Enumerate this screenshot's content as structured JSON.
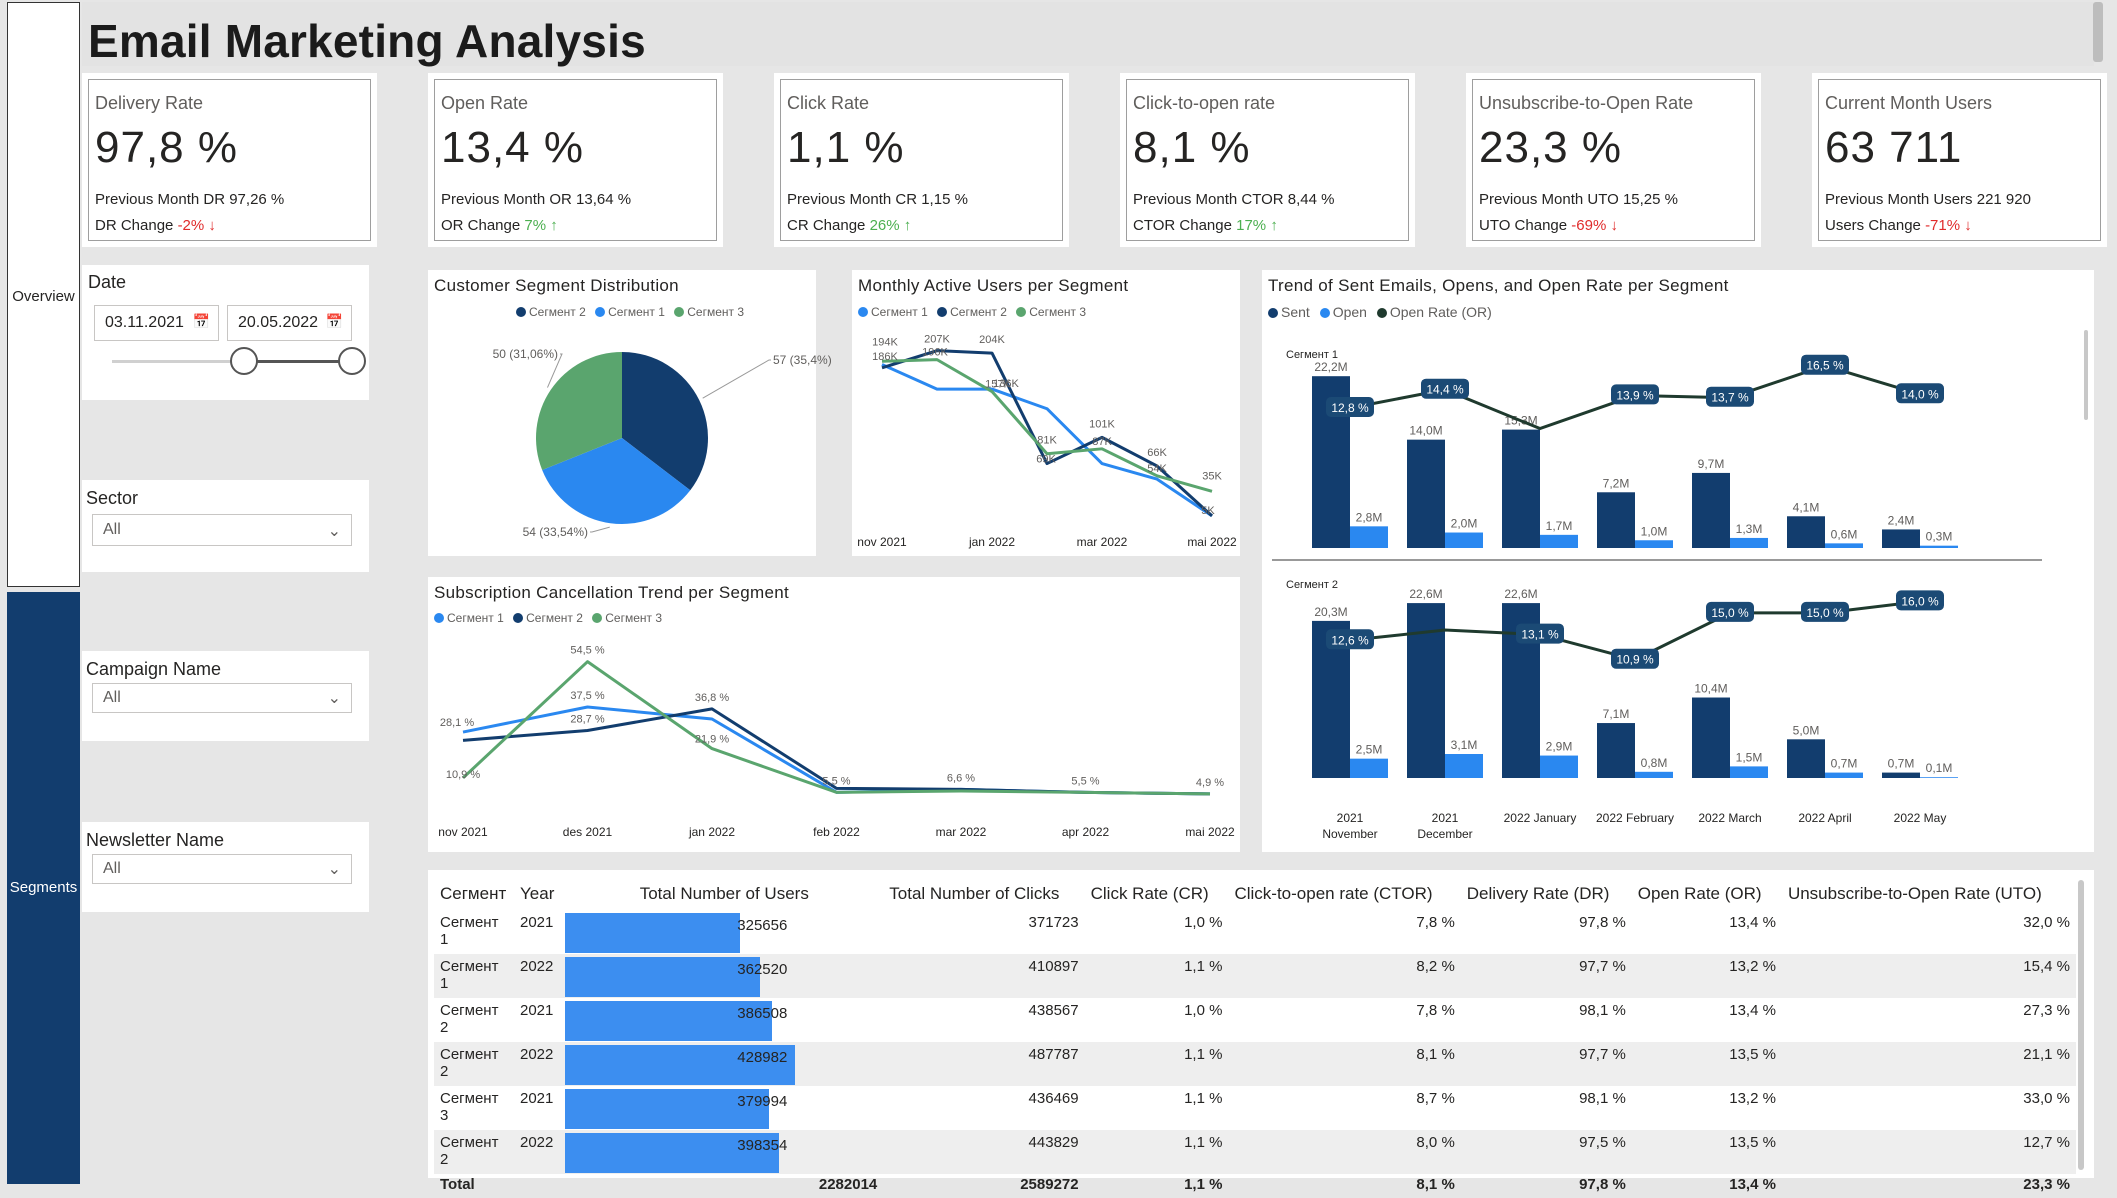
{
  "page_title": "Email Marketing Analysis",
  "nav": {
    "overview": "Overview",
    "segments": "Segments"
  },
  "kpis": [
    {
      "label": "Delivery Rate",
      "value": "97,8 %",
      "prev": "Previous Month DR 97,26 %",
      "change_label": "DR Change",
      "change": "-2%",
      "direction": "down"
    },
    {
      "label": "Open Rate",
      "value": "13,4 %",
      "prev": "Previous Month OR 13,64 %",
      "change_label": "OR Change",
      "change": "7%",
      "direction": "up"
    },
    {
      "label": "Click Rate",
      "value": "1,1 %",
      "prev": "Previous Month CR 1,15 %",
      "change_label": "CR Change",
      "change": "26%",
      "direction": "up"
    },
    {
      "label": "Click-to-open rate",
      "value": "8,1 %",
      "prev": "Previous Month CTOR 8,44 %",
      "change_label": "CTOR Change",
      "change": "17%",
      "direction": "up"
    },
    {
      "label": "Unsubscribe-to-Open Rate",
      "value": "23,3 %",
      "prev": "Previous Month UTO 15,25 %",
      "change_label": "UTO Change",
      "change": "-69%",
      "direction": "down"
    },
    {
      "label": "Current Month Users",
      "value": "63 711",
      "prev": "Previous Month Users 221 920",
      "change_label": "Users Change",
      "change": "-71%",
      "direction": "down"
    }
  ],
  "slicers": {
    "date": {
      "title": "Date",
      "start": "03.11.2021",
      "end": "20.05.2022",
      "range_start": 0.55,
      "range_end": 1.0
    },
    "sector": {
      "title": "Sector",
      "value": "All"
    },
    "campaign": {
      "title": "Campaign Name",
      "value": "All"
    },
    "newsletter": {
      "title": "Newsletter Name",
      "value": "All"
    }
  },
  "colors": {
    "seg1": "#2a88f0",
    "seg2": "#123d6e",
    "seg3": "#5aa56e",
    "nav": "#123d6e",
    "up": "#4caf50",
    "down": "#e02b2b"
  },
  "pie": {
    "title": "Customer Segment Distribution",
    "legend": [
      "Сегмент 2",
      "Сегмент 1",
      "Сегмент 3"
    ],
    "labels": [
      "57 (35,4%)",
      "54 (33,54%)",
      "50 (31,06%)"
    ],
    "chart_data": {
      "type": "pie",
      "categories": [
        "Сегмент 2",
        "Сегмент 1",
        "Сегмент 3"
      ],
      "values": [
        57,
        54,
        50
      ],
      "percent": [
        35.4,
        33.54,
        31.06
      ]
    }
  },
  "mau": {
    "title": "Monthly Active Users per Segment",
    "legend": [
      "Сегмент 1",
      "Сегмент 2",
      "Сегмент 3"
    ],
    "x_labels": [
      "nov 2021",
      "jan 2022",
      "mar 2022",
      "mai 2022"
    ],
    "point_labels": [
      "194K",
      "186K",
      "207K",
      "196K",
      "204K",
      "157K",
      "136K",
      "81K",
      "69K",
      "101K",
      "87K",
      "66K",
      "54K",
      "35K",
      "5K"
    ],
    "chart_data": {
      "type": "line",
      "x": [
        "nov 2021",
        "des 2021",
        "jan 2022",
        "feb 2022",
        "mar 2022",
        "apr 2022",
        "mai 2022"
      ],
      "series": [
        {
          "name": "Сегмент 1",
          "values": [
            190,
            160,
            160,
            136,
            69,
            50,
            5
          ]
        },
        {
          "name": "Сегмент 2",
          "values": [
            186,
            207,
            204,
            69,
            101,
            66,
            5
          ]
        },
        {
          "name": "Сегмент 3",
          "values": [
            194,
            196,
            157,
            81,
            87,
            54,
            35
          ]
        }
      ]
    }
  },
  "trend": {
    "title": "Trend of Sent Emails, Opens, and Open Rate per Segment",
    "legend": [
      "Sent",
      "Open",
      "Open Rate (OR)"
    ],
    "x_labels": [
      "2021 November",
      "2021 December",
      "2022 January",
      "2022 February",
      "2022 March",
      "2022 April",
      "2022 May"
    ],
    "chart_data": [
      {
        "type": "bar",
        "panel": "Сегмент 1",
        "categories": [
          "2021 November",
          "2021 December",
          "2022 January",
          "2022 February",
          "2022 March",
          "2022 April",
          "2022 May"
        ],
        "sent": [
          22.2,
          14.0,
          15.3,
          7.2,
          9.7,
          4.1,
          2.4
        ],
        "open": [
          2.8,
          2.0,
          1.7,
          1.0,
          1.3,
          0.6,
          0.3
        ],
        "or": [
          12.8,
          14.4,
          11.0,
          13.9,
          13.7,
          16.5,
          14.0
        ],
        "sent_labels": [
          "22,2M",
          "14,0M",
          "15,3M",
          "7,2M",
          "9,7M",
          "4,1M",
          "2,4M"
        ],
        "open_labels": [
          "2,8M",
          "2,0M",
          "1,7M",
          "1,0M",
          "1,3M",
          "0,6M",
          "0,3M"
        ],
        "or_labels": [
          "12,8 %",
          "14,4 %",
          "",
          "13,9 %",
          "13,7 %",
          "16,5 %",
          "14,0 %"
        ]
      },
      {
        "type": "bar",
        "panel": "Сегмент 2",
        "categories": [
          "2021 November",
          "2021 December",
          "2022 January",
          "2022 February",
          "2022 March",
          "2022 April",
          "2022 May"
        ],
        "sent": [
          20.3,
          22.6,
          22.6,
          7.1,
          10.4,
          5.0,
          0.7
        ],
        "open": [
          2.5,
          3.1,
          2.9,
          0.8,
          1.5,
          0.7,
          0.1
        ],
        "or": [
          12.6,
          13.5,
          13.1,
          10.9,
          15.0,
          15.0,
          16.0
        ],
        "sent_labels": [
          "20,3M",
          "22,6M",
          "22,6M",
          "7,1M",
          "10,4M",
          "5,0M",
          "0,7M"
        ],
        "open_labels": [
          "2,5M",
          "3,1M",
          "2,9M",
          "0,8M",
          "1,5M",
          "0,7M",
          "0,1M"
        ],
        "or_labels": [
          "12,6 %",
          "",
          "13,1 %",
          "10,9 %",
          "15,0 %",
          "15,0 %",
          "16,0 %"
        ]
      }
    ]
  },
  "cancel": {
    "title": "Subscription Cancellation Trend per Segment",
    "legend": [
      "Сегмент 1",
      "Сегмент 2",
      "Сегмент 3"
    ],
    "x_labels": [
      "nov 2021",
      "des 2021",
      "jan 2022",
      "feb 2022",
      "mar 2022",
      "apr 2022",
      "mai 2022"
    ],
    "point_labels": [
      "28,1 %",
      "10,9 %",
      "54,5 %",
      "37,5 %",
      "28,7 %",
      "36,8 %",
      "21,9 %",
      "5,5 %",
      "6,6 %",
      "5,5 %",
      "4,9 %"
    ],
    "chart_data": {
      "type": "line",
      "x": [
        "nov 2021",
        "des 2021",
        "jan 2022",
        "feb 2022",
        "mar 2022",
        "apr 2022",
        "mai 2022"
      ],
      "series": [
        {
          "name": "Сегмент 1",
          "values": [
            28.1,
            37.5,
            33.0,
            5.5,
            6.6,
            5.5,
            4.9
          ]
        },
        {
          "name": "Сегмент 2",
          "values": [
            25.0,
            28.7,
            36.8,
            7.0,
            6.6,
            5.5,
            4.9
          ]
        },
        {
          "name": "Сегмент 3",
          "values": [
            10.9,
            54.5,
            21.9,
            5.5,
            6.0,
            5.5,
            4.9
          ]
        }
      ]
    }
  },
  "table": {
    "headers": [
      "Сегмент",
      "Year",
      "Total Number of Users",
      "Total Number of Clicks",
      "Click Rate (CR)",
      "Click-to-open rate (CTOR)",
      "Delivery Rate (DR)",
      "Open Rate (OR)",
      "Unsubscribe-to-Open Rate (UTO)"
    ],
    "rows": [
      {
        "seg": "Сегмент 1",
        "year": "2021",
        "users": "325656",
        "users_share": 0.76,
        "clicks": "371723",
        "cr": "1,0 %",
        "ctor": "7,8 %",
        "dr": "97,8 %",
        "or": "13,4 %",
        "uto": "32,0 %"
      },
      {
        "seg": "Сегмент 1",
        "year": "2022",
        "users": "362520",
        "users_share": 0.845,
        "clicks": "410897",
        "cr": "1,1 %",
        "ctor": "8,2 %",
        "dr": "97,7 %",
        "or": "13,2 %",
        "uto": "15,4 %"
      },
      {
        "seg": "Сегмент 2",
        "year": "2021",
        "users": "386508",
        "users_share": 0.9,
        "clicks": "438567",
        "cr": "1,0 %",
        "ctor": "7,8 %",
        "dr": "98,1 %",
        "or": "13,4 %",
        "uto": "27,3 %"
      },
      {
        "seg": "Сегмент 2",
        "year": "2022",
        "users": "428982",
        "users_share": 1.0,
        "clicks": "487787",
        "cr": "1,1 %",
        "ctor": "8,1 %",
        "dr": "97,7 %",
        "or": "13,5 %",
        "uto": "21,1 %"
      },
      {
        "seg": "Сегмент 3",
        "year": "2021",
        "users": "379994",
        "users_share": 0.885,
        "clicks": "436469",
        "cr": "1,1 %",
        "ctor": "8,7 %",
        "dr": "98,1 %",
        "or": "13,2 %",
        "uto": "33,0 %"
      },
      {
        "seg": "Сегмент 2",
        "year": "2022",
        "users": "398354",
        "users_share": 0.93,
        "clicks": "443829",
        "cr": "1,1 %",
        "ctor": "8,0 %",
        "dr": "97,5 %",
        "or": "13,5 %",
        "uto": "12,7 %"
      }
    ],
    "total": {
      "label": "Total",
      "users": "2282014",
      "clicks": "2589272",
      "cr": "1,1 %",
      "ctor": "8,1 %",
      "dr": "97,8 %",
      "or": "13,4 %",
      "uto": "23,3 %"
    }
  }
}
